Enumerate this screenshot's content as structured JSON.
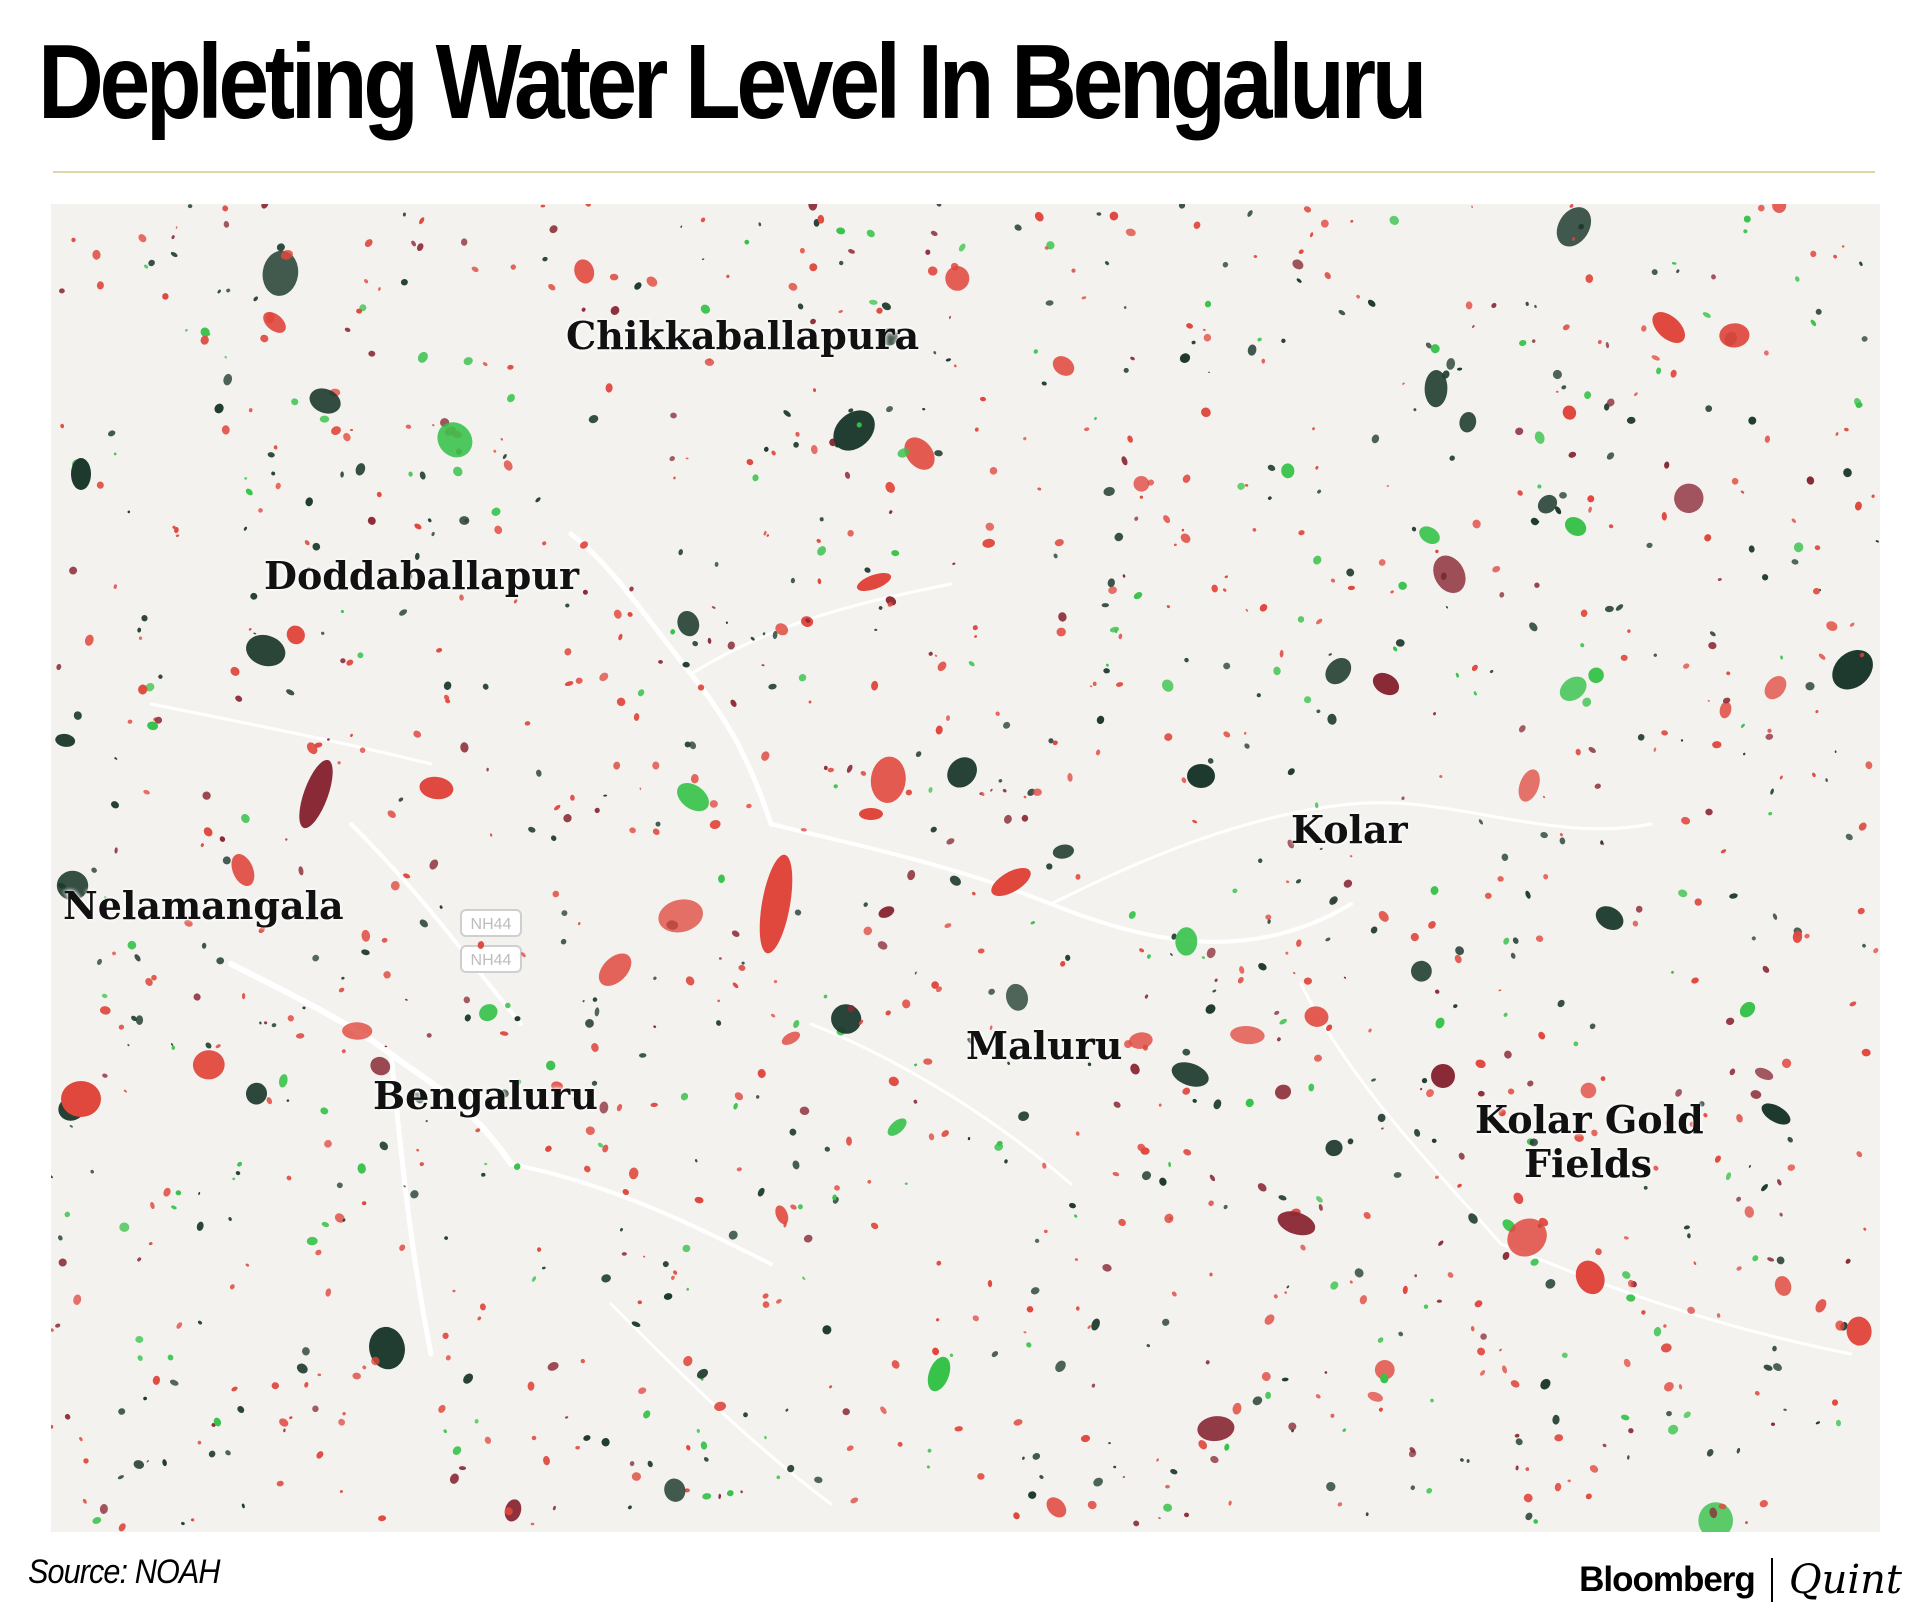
{
  "title": "Depleting Water Level In Bengaluru",
  "source": "Source: NOAH",
  "brand": {
    "primary": "Bloomberg",
    "secondary": "Quint"
  },
  "colors": {
    "map_background": "#f3f2ee",
    "water_loss": "#e0473d",
    "water_loss_dark": "#8a2a36",
    "water_persistent": "#1e3a2e",
    "water_gain": "#37c24a",
    "roads": "#ffffff"
  },
  "map": {
    "labels": {
      "chikkaballapura": "Chikkaballapura",
      "doddaballapur": "Doddaballapur",
      "nelamangala": "Nelamangala",
      "bengaluru": "Bengaluru",
      "maluru": "Maluru",
      "kolar": "Kolar",
      "kolar_gold_fields_1": "Kolar Gold",
      "kolar_gold_fields_2": "Fields"
    },
    "highway_shields": [
      "NH44",
      "NH44"
    ]
  }
}
